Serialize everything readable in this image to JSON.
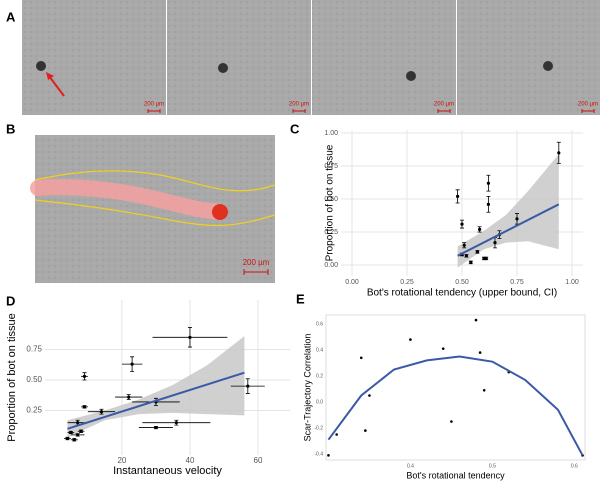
{
  "images": [
    {
      "label": "A",
      "scale_bars": [
        "200 µm",
        "200 µm",
        "200 µm",
        "200 µm"
      ]
    },
    {
      "label": "B",
      "scale_bars": [
        "200 µm"
      ]
    }
  ],
  "chart_data": [
    {
      "type": "scatter",
      "panel": "C",
      "xlabel": "Bot's rotational tendency (upper bound, CI)",
      "ylabel": "Proportion of bot on tissue",
      "x": [
        0.48,
        0.5,
        0.51,
        0.5,
        0.52,
        0.54,
        0.57,
        0.58,
        0.6,
        0.61,
        0.62,
        0.62,
        0.65,
        0.67,
        0.75,
        0.94
      ],
      "values": [
        0.52,
        0.31,
        0.15,
        0.08,
        0.07,
        0.02,
        0.1,
        0.27,
        0.05,
        0.05,
        0.62,
        0.46,
        0.17,
        0.23,
        0.35,
        0.85
      ],
      "y_errors": [
        0.05,
        0.03,
        0.02,
        0.01,
        0.01,
        0.01,
        0.01,
        0.02,
        0.01,
        0.01,
        0.06,
        0.06,
        0.04,
        0.03,
        0.04,
        0.08
      ],
      "fit": {
        "x": [
          0.48,
          0.94
        ],
        "y": [
          0.07,
          0.46
        ]
      },
      "band": {
        "x": [
          0.48,
          0.6,
          0.7,
          0.8,
          0.94
        ],
        "lower": [
          -0.02,
          0.12,
          0.17,
          0.18,
          0.12
        ],
        "upper": [
          0.14,
          0.26,
          0.38,
          0.56,
          0.84
        ]
      },
      "xlim": [
        -0.05,
        1.05
      ],
      "ylim": [
        -0.083,
        1.023
      ],
      "xticks": [
        {
          "value": 0,
          "label": "0.00"
        },
        0.25,
        {
          "value": 0.5,
          "label": "0.50"
        },
        0.75,
        {
          "value": 1,
          "label": "1.00"
        }
      ],
      "yticks": [
        {
          "value": 0,
          "label": "0.00"
        },
        0.25,
        {
          "value": 0.5,
          "label": "0.50"
        },
        0.75,
        {
          "value": 1,
          "label": "1.00"
        }
      ],
      "grid": true,
      "color": "#000000",
      "fit_color": "#3a5aa8",
      "band_color": "#c8c8c8"
    },
    {
      "type": "scatter",
      "panel": "D",
      "xlabel": "Instantaneous velocity",
      "ylabel": "Proportion of bot on tissue",
      "x": [
        40,
        23,
        9,
        57,
        30,
        22,
        14,
        9,
        36,
        30,
        7,
        5,
        7,
        8,
        4,
        6
      ],
      "values": [
        0.85,
        0.63,
        0.53,
        0.45,
        0.32,
        0.36,
        0.24,
        0.28,
        0.15,
        0.11,
        0.15,
        0.07,
        0.05,
        0.08,
        0.02,
        0.01
      ],
      "x_errors": [
        11,
        3,
        1,
        5,
        7,
        4,
        4,
        1,
        10,
        5,
        3,
        1,
        2,
        1,
        1,
        1
      ],
      "y_errors": [
        0.08,
        0.06,
        0.03,
        0.06,
        0.03,
        0.02,
        0.02,
        0.01,
        0.02,
        0.01,
        0.02,
        0.01,
        0.01,
        0.01,
        0.01,
        0.01
      ],
      "fit": {
        "x": [
          4,
          56
        ],
        "y": [
          0.1,
          0.56
        ]
      },
      "band": {
        "x": [
          4,
          15,
          25,
          35,
          45,
          56
        ],
        "lower": [
          0.03,
          0.17,
          0.22,
          0.23,
          0.22,
          0.21
        ],
        "upper": [
          0.17,
          0.25,
          0.34,
          0.46,
          0.62,
          0.86
        ]
      },
      "xlim": [
        -2.6,
        69.4
      ],
      "ylim": [
        -0.115,
        1.156
      ],
      "xticks": [
        20,
        40,
        60
      ],
      "yticks": [
        0.25,
        {
          "value": 0.5,
          "label": "0.50"
        },
        0.75
      ],
      "grid": true,
      "color": "#000000",
      "fit_color": "#3a5aa8",
      "band_color": "#c8c8c8"
    },
    {
      "type": "scatter",
      "panel": "E",
      "xlabel": "Bot's rotational tendency",
      "ylabel": "Scar-Trajectory Correlation",
      "x": [
        0.3,
        0.31,
        0.34,
        0.345,
        0.35,
        0.4,
        0.44,
        0.45,
        0.48,
        0.485,
        0.49,
        0.52,
        0.61
      ],
      "values": [
        -0.41,
        -0.25,
        0.34,
        -0.22,
        0.05,
        0.48,
        0.41,
        -0.15,
        0.63,
        0.38,
        0.09,
        0.23,
        -0.41
      ],
      "fit": {
        "x": [
          0.3,
          0.34,
          0.38,
          0.42,
          0.46,
          0.5,
          0.54,
          0.58,
          0.61
        ],
        "y": [
          -0.29,
          0.05,
          0.25,
          0.32,
          0.35,
          0.31,
          0.17,
          -0.06,
          -0.41
        ]
      },
      "xlim": [
        0.297,
        0.613
      ],
      "ylim": [
        -0.446,
        0.669
      ],
      "xticks": [
        0.4,
        0.5,
        0.6
      ],
      "yticks": [
        0.6,
        0.4,
        0.2,
        {
          "value": 0,
          "label": "0.0"
        },
        -0.2,
        -0.4
      ],
      "grid": false,
      "color": "#000000",
      "fit_color": "#3a5aa8"
    }
  ]
}
